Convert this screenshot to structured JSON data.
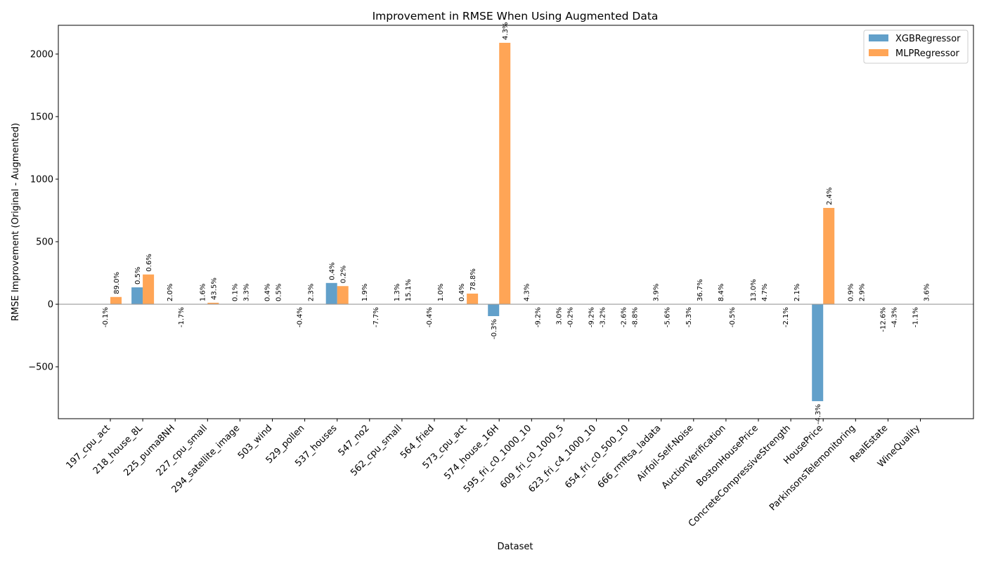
{
  "chart_data": {
    "type": "bar",
    "title": "Improvement in RMSE When Using Augmented Data",
    "xlabel": "Dataset",
    "ylabel": "RMSE Improvement (Original - Augmented)",
    "ylim": [
      -915,
      2230
    ],
    "yticks": [
      -500,
      0,
      500,
      1000,
      1500,
      2000
    ],
    "legend": "top-right",
    "grid": false,
    "categories": [
      "197_cpu_act",
      "218_house_8L",
      "225_puma8NH",
      "227_cpu_small",
      "294_satellite_image",
      "503_wind",
      "529_pollen",
      "537_houses",
      "547_no2",
      "562_cpu_small",
      "564_fried",
      "573_cpu_act",
      "574_house_16H",
      "595_fri_c0_1000_10",
      "609_fri_c0_1000_5",
      "623_fri_c4_1000_10",
      "654_fri_c0_500_10",
      "666_rmftsa_ladata",
      "Airfoil-Self-Noise",
      "AuctionVerification",
      "BostonHousePrice",
      "ConcreteCompressiveStrength",
      "HousePrice",
      "ParkinsonsTelemonitoring",
      "RealEstate",
      "WineQuality"
    ],
    "series": [
      {
        "name": "XGBRegressor",
        "color": "#1f77b4",
        "values": [
          -0.2,
          135,
          0.02,
          0.01,
          0.01,
          0.02,
          -0.01,
          170,
          0.01,
          0.01,
          -0.01,
          0.01,
          -95,
          0.01,
          -0.01,
          -0.01,
          -0.02,
          0.01,
          -0.1,
          0.01,
          0.3,
          -0.1,
          -775,
          0.01,
          -0.5,
          -0.01
        ],
        "labels": [
          "-0.1%",
          "0.5%",
          "2.0%",
          "1.6%",
          "0.1%",
          "0.4%",
          "-0.4%",
          "0.4%",
          "1.9%",
          "1.3%",
          "-0.4%",
          "0.4%",
          "-0.3%",
          "4.3%",
          "3.0%",
          "-9.2%",
          "-2.6%",
          "3.9%",
          "-5.3%",
          "8.4%",
          "13.0%",
          "-2.1%",
          "-4.3%",
          "0.9%",
          "-12.6%",
          "-1.1%"
        ]
      },
      {
        "name": "MLPRegressor",
        "color": "#ff7f0e",
        "values": [
          58,
          238,
          -0.02,
          12,
          0.01,
          0.01,
          0.02,
          145,
          -0.05,
          0.1,
          0.01,
          85,
          2090,
          -0.05,
          -0.01,
          -0.01,
          -0.05,
          -0.05,
          0.5,
          -0.01,
          0.2,
          0.02,
          770,
          0.01,
          -0.1,
          0.02
        ],
        "labels": [
          "89.0%",
          "0.6%",
          "-1.7%",
          "43.5%",
          "3.3%",
          "0.5%",
          "2.3%",
          "0.2%",
          "-7.7%",
          "15.1%",
          "1.0%",
          "78.8%",
          "4.3%",
          "-9.2%",
          "-0.2%",
          "-3.2%",
          "-8.8%",
          "-5.6%",
          "36.7%",
          "-0.5%",
          "4.7%",
          "2.1%",
          "2.4%",
          "2.9%",
          "-4.3%",
          "3.6%"
        ]
      }
    ]
  }
}
